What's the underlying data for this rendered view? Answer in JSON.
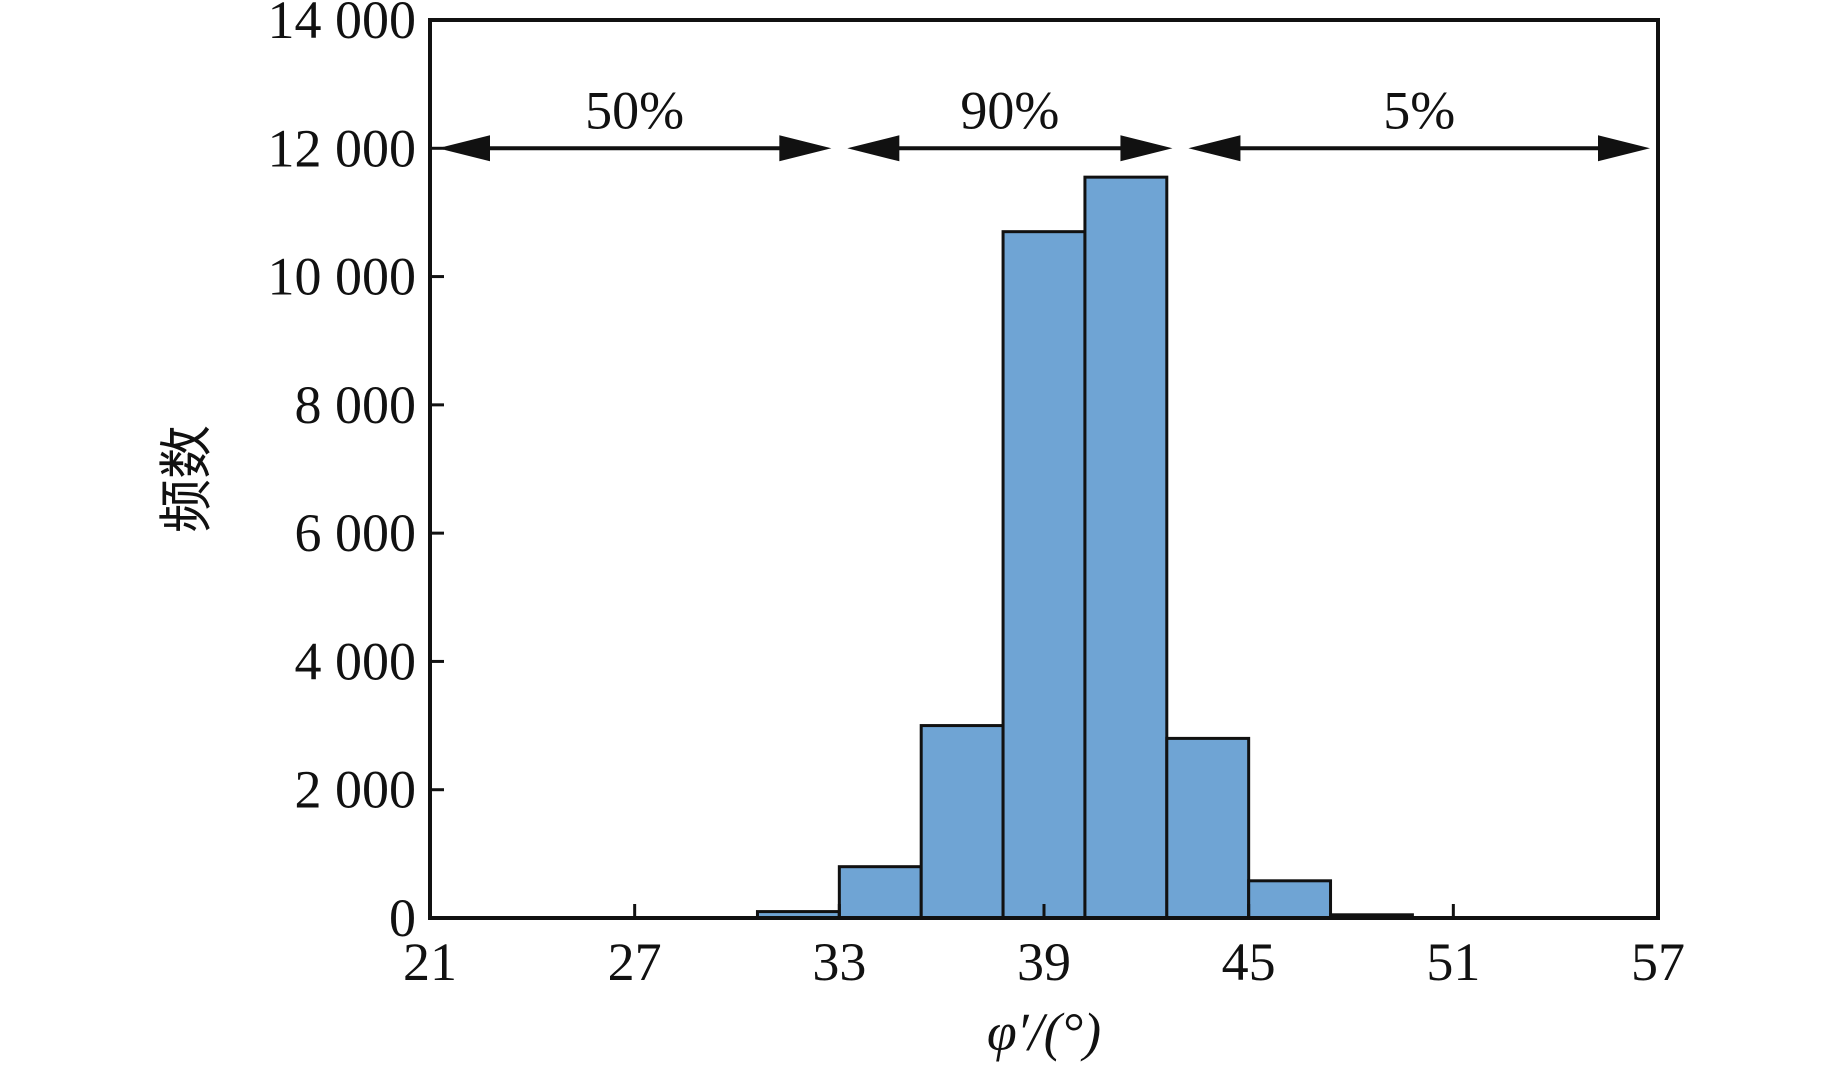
{
  "chart_data": {
    "type": "bar",
    "title": "",
    "xlabel": "φ′/(°)",
    "ylabel": "频数",
    "xlim": [
      21,
      57
    ],
    "ylim": [
      0,
      14000
    ],
    "x_ticks": [
      "21",
      "27",
      "33",
      "39",
      "45",
      "51",
      "57"
    ],
    "y_ticks": [
      "0",
      "2 000",
      "4 000",
      "6 000",
      "8 000",
      "10 000",
      "12 000",
      "14 000"
    ],
    "y_tick_values": [
      0,
      2000,
      4000,
      6000,
      8000,
      10000,
      12000,
      14000
    ],
    "x_tick_values": [
      21,
      27,
      33,
      39,
      45,
      51,
      57
    ],
    "bins": [
      {
        "start": 30.6,
        "end": 33.0,
        "value": 100
      },
      {
        "start": 33.0,
        "end": 35.4,
        "value": 800
      },
      {
        "start": 35.4,
        "end": 37.8,
        "value": 3000
      },
      {
        "start": 37.8,
        "end": 40.2,
        "value": 10700
      },
      {
        "start": 40.2,
        "end": 42.6,
        "value": 11550
      },
      {
        "start": 42.6,
        "end": 45.0,
        "value": 2800
      },
      {
        "start": 45.0,
        "end": 47.4,
        "value": 580
      },
      {
        "start": 47.4,
        "end": 49.8,
        "value": 50
      }
    ],
    "bar_color": "#6fa4d4",
    "grid": false,
    "annotations": [
      {
        "label": "50%",
        "from": 21,
        "to": 33,
        "y": 12000
      },
      {
        "label": "90%",
        "from": 33,
        "to": 43,
        "y": 12000
      },
      {
        "label": "5%",
        "from": 43,
        "to": 57,
        "y": 12000
      }
    ]
  }
}
